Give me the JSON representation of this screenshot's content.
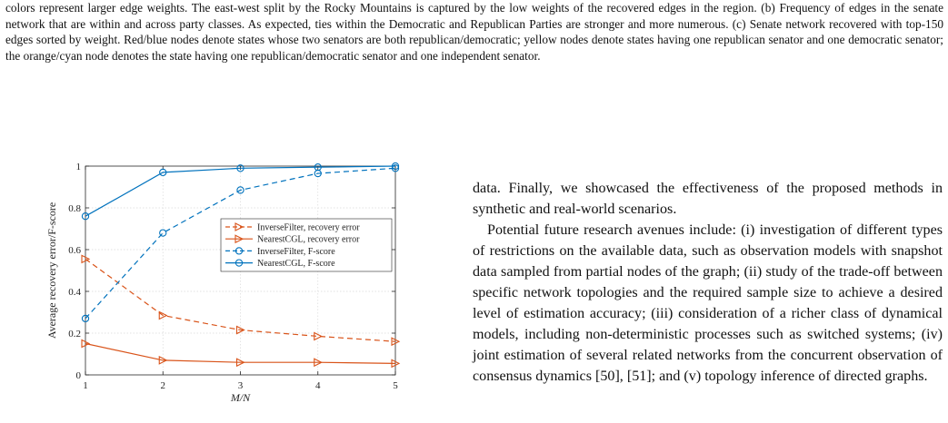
{
  "caption": {
    "text": "colors represent larger edge weights. The east-west split by the Rocky Mountains is captured by the low weights of the recovered edges in the region. (b) Frequency of edges in the senate network that are within and across party classes. As expected, ties within the Democratic and Republican Parties are stronger and more numerous. (c) Senate network recovered with top-150 edges sorted by weight. Red/blue nodes denote states whose two senators are both republican/democratic; yellow nodes denote states having one republican senator and one democratic senator; the orange/cyan node denotes the state having one republican/democratic senator and one independent senator."
  },
  "body": {
    "para1": "data. Finally, we showcased the effectiveness of the proposed methods in synthetic and real-world scenarios.",
    "para2": "Potential future research avenues include: (i) investigation of different types of restrictions on the available data, such as observation models with snapshot data sampled from partial nodes of the graph; (ii) study of the trade-off between specific network topologies and the required sample size to achieve a desired level of estimation accuracy; (iii) consideration of a richer class of dynamical models, including non-deterministic processes such as switched systems; (iv) joint estimation of several related networks from the concurrent observation of consensus dynamics [50], [51]; and (v) topology inference of directed graphs."
  },
  "chart_data": {
    "type": "line",
    "xlabel": "M/N",
    "ylabel": "Average recovery error/F-score",
    "xlim": [
      1,
      5
    ],
    "ylim": [
      0,
      1
    ],
    "xticks": [
      "1",
      "2",
      "3",
      "4",
      "5"
    ],
    "yticks": [
      "0",
      "0.2",
      "0.4",
      "0.6",
      "0.8",
      "1"
    ],
    "x": [
      1,
      2,
      3,
      4,
      5
    ],
    "grid": true,
    "legend_position": "middle-right",
    "series": [
      {
        "name": "InverseFilter, recovery error",
        "values": [
          0.555,
          0.285,
          0.215,
          0.185,
          0.16
        ],
        "color": "#d95319",
        "dash": true,
        "marker": "triangle-right"
      },
      {
        "name": "NearestCGL, recovery error",
        "values": [
          0.15,
          0.07,
          0.06,
          0.06,
          0.055
        ],
        "color": "#d95319",
        "dash": false,
        "marker": "triangle-right"
      },
      {
        "name": "InverseFilter, F-score",
        "values": [
          0.27,
          0.68,
          0.885,
          0.965,
          0.99
        ],
        "color": "#0072bd",
        "dash": true,
        "marker": "circle"
      },
      {
        "name": "NearestCGL, F-score",
        "values": [
          0.76,
          0.97,
          0.99,
          0.995,
          1.0
        ],
        "color": "#0072bd",
        "dash": false,
        "marker": "circle"
      }
    ]
  }
}
